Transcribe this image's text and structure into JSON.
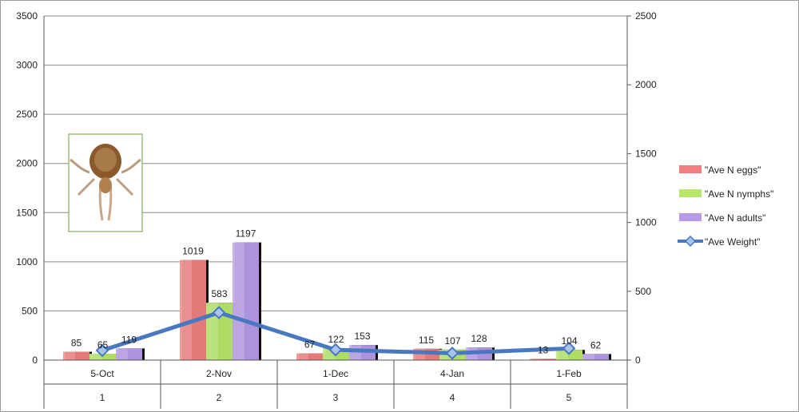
{
  "chart_data": {
    "type": "bar",
    "categories": [
      "5-Oct",
      "2-Nov",
      "1-Dec",
      "4-Jan",
      "1-Feb"
    ],
    "category_index": [
      "1",
      "2",
      "3",
      "4",
      "5"
    ],
    "series": [
      {
        "name": "\"Ave N eggs\"",
        "color": "#f08080",
        "values": [
          85,
          1019,
          67,
          115,
          13
        ]
      },
      {
        "name": "\"Ave N nymphs\"",
        "color": "#b7e86a",
        "values": [
          65,
          583,
          122,
          107,
          104
        ]
      },
      {
        "name": "\"Ave N adults\"",
        "color": "#b79be8",
        "values": [
          119,
          1197,
          153,
          128,
          62
        ]
      }
    ],
    "line_series": {
      "name": "\"Ave Weight\"",
      "color": "#4a78c0",
      "axis": "right",
      "values": [
        70,
        345,
        75,
        50,
        85
      ]
    },
    "y_left": {
      "min": 0,
      "max": 3500,
      "ticks": [
        "0",
        "500",
        "1000",
        "1500",
        "2000",
        "2500",
        "3000",
        "3500"
      ]
    },
    "y_right": {
      "min": 0,
      "max": 2500,
      "ticks": [
        "0",
        "500",
        "1000",
        "1500",
        "2000",
        "2500"
      ]
    },
    "grid": true,
    "legend_placement": "right"
  },
  "inset_image": {
    "name": "mite-photo"
  }
}
